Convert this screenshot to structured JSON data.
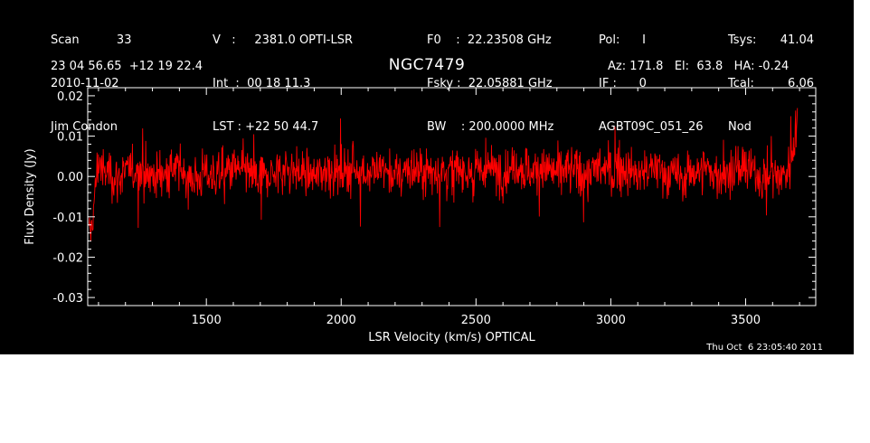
{
  "header": {
    "col1": [
      "Scan          33",
      "2010-11-02",
      "Jim Condon"
    ],
    "col2": [
      "V   :     2381.0 OPTI-LSR",
      "Int  :  00 18 11.3",
      "LST : +22 50 44.7"
    ],
    "col3": [
      "F0    :  22.23508 GHz",
      "Fsky :  22.05881 GHz",
      "BW    : 200.0000 MHz"
    ],
    "col4": [
      "Pol:      I",
      "IF :      0",
      "AGBT09C_051_26"
    ],
    "col5_labels": [
      "Tsys:",
      "Tcal:",
      "Nod"
    ],
    "col5_values": [
      "41.04",
      "6.06",
      ""
    ],
    "coords": "23 04 56.65  +12 19 22.4",
    "source": "NGC7479",
    "azelha": "Az: 171.8   El:  63.8   HA: -0.24"
  },
  "footer": {
    "datestamp": "Thu Oct  6 23:05:40 2011"
  },
  "chart_data": {
    "type": "line",
    "title": "NGC7479",
    "xlabel": "LSR Velocity (km/s) OPTICAL",
    "ylabel": "Flux Density (Jy)",
    "xlim": [
      1060,
      3760
    ],
    "ylim": [
      -0.032,
      0.022
    ],
    "xticks": [
      1500,
      2000,
      2500,
      3000,
      3500
    ],
    "yticks": [
      0.02,
      0.01,
      0.0,
      -0.01,
      -0.02,
      -0.03
    ],
    "ytick_labels": [
      "0.02",
      "0.01",
      "0.00",
      "-0.01",
      "-0.02",
      "-0.03"
    ],
    "line_color": "#ff0000",
    "axis_color": "#ffffff",
    "background": "#000000",
    "series": [
      {
        "x": [
          1065,
          1075,
          1085,
          1095,
          1105,
          1120,
          1140,
          1160,
          1200,
          1250,
          1300,
          1350,
          1400,
          1450,
          1500,
          1550,
          1600,
          1650,
          1700,
          1750,
          1800,
          1850,
          1900,
          1950,
          2000,
          2050,
          2100,
          2150,
          2200,
          2250,
          2300,
          2350,
          2400,
          2450,
          2500,
          2550,
          2600,
          2650,
          2700,
          2750,
          2800,
          2850,
          2900,
          2950,
          3000,
          3050,
          3100,
          3150,
          3200,
          3250,
          3300,
          3350,
          3400,
          3450,
          3500,
          3550,
          3600,
          3630,
          3650,
          3665,
          3675,
          3685,
          3692
        ],
        "y": [
          -0.016,
          -0.012,
          -0.006,
          0.002,
          0.004,
          0.0,
          0.002,
          -0.001,
          0.001,
          0.002,
          0.0,
          0.001,
          0.002,
          -0.001,
          0.001,
          0.0,
          0.002,
          0.001,
          -0.001,
          0.001,
          0.002,
          0.001,
          0.0,
          0.002,
          0.001,
          0.002,
          0.001,
          0.002,
          0.0,
          0.002,
          0.001,
          0.002,
          0.001,
          0.002,
          0.001,
          0.002,
          0.001,
          0.003,
          0.001,
          0.002,
          0.001,
          0.002,
          0.001,
          0.002,
          0.001,
          0.002,
          0.0,
          0.002,
          0.001,
          0.0,
          0.001,
          0.002,
          0.0,
          0.001,
          0.002,
          0.0,
          0.001,
          0.0,
          0.001,
          0.003,
          0.006,
          0.012,
          0.016
        ],
        "noise_rms": 0.004
      }
    ]
  }
}
